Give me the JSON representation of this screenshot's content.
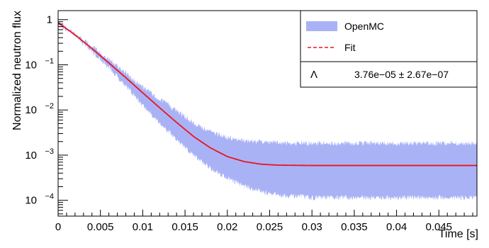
{
  "chart_data": {
    "type": "line",
    "xlabel": "Time [s]",
    "ylabel": "Normalized neutron flux",
    "xlim": [
      0,
      0.0495
    ],
    "ylim_log10": [
      -4.35,
      0.2
    ],
    "y_scale": "log",
    "grid": false,
    "legend_position": "top-right",
    "x_ticks": [
      {
        "value": 0,
        "label": "0"
      },
      {
        "value": 0.005,
        "label": "0.005"
      },
      {
        "value": 0.01,
        "label": "0.01"
      },
      {
        "value": 0.015,
        "label": "0.015"
      },
      {
        "value": 0.02,
        "label": "0.02"
      },
      {
        "value": 0.025,
        "label": "0.025"
      },
      {
        "value": 0.03,
        "label": "0.03"
      },
      {
        "value": 0.035,
        "label": "0.035"
      },
      {
        "value": 0.04,
        "label": "0.04"
      },
      {
        "value": 0.045,
        "label": "0.045"
      }
    ],
    "y_ticks": [
      {
        "exp": 0,
        "base": "1",
        "sup": ""
      },
      {
        "exp": -1,
        "base": "10",
        "sup": "−1"
      },
      {
        "exp": -2,
        "base": "10",
        "sup": "−2"
      },
      {
        "exp": -3,
        "base": "10",
        "sup": "−3"
      },
      {
        "exp": -4,
        "base": "10",
        "sup": "−4"
      }
    ],
    "series": [
      {
        "name": "OpenMC",
        "style": "band",
        "color": "#aab2f6",
        "x": [
          0,
          0.002,
          0.004,
          0.006,
          0.008,
          0.01,
          0.012,
          0.014,
          0.016,
          0.018,
          0.02,
          0.022,
          0.025,
          0.03,
          0.035,
          0.04,
          0.045,
          0.0495
        ],
        "upper": [
          0.93,
          0.55,
          0.3,
          0.15,
          0.075,
          0.037,
          0.02,
          0.011,
          0.006,
          0.0038,
          0.0028,
          0.0024,
          0.0022,
          0.0021,
          0.0021,
          0.0021,
          0.0021,
          0.0021
        ],
        "lower": [
          0.8,
          0.4,
          0.17,
          0.075,
          0.03,
          0.011,
          0.0045,
          0.0019,
          0.00085,
          0.00045,
          0.00027,
          0.00018,
          0.00012,
          0.0001,
          0.0001,
          0.0001,
          0.0001,
          0.0001
        ]
      },
      {
        "name": "Fit",
        "style": "dashed",
        "color": "#e8161b",
        "x": [
          0,
          0.002,
          0.004,
          0.006,
          0.008,
          0.01,
          0.012,
          0.014,
          0.016,
          0.018,
          0.02,
          0.022,
          0.024,
          0.026,
          0.03,
          0.035,
          0.04,
          0.045,
          0.0495
        ],
        "y": [
          0.86,
          0.46,
          0.23,
          0.11,
          0.052,
          0.024,
          0.0112,
          0.0053,
          0.0026,
          0.00145,
          0.00093,
          0.00072,
          0.00063,
          0.0006,
          0.00059,
          0.00059,
          0.00059,
          0.00059,
          0.00059
        ]
      }
    ],
    "annotation": {
      "symbol": "Λ",
      "value": "3.76e−05 ± 2.67e−07"
    }
  }
}
